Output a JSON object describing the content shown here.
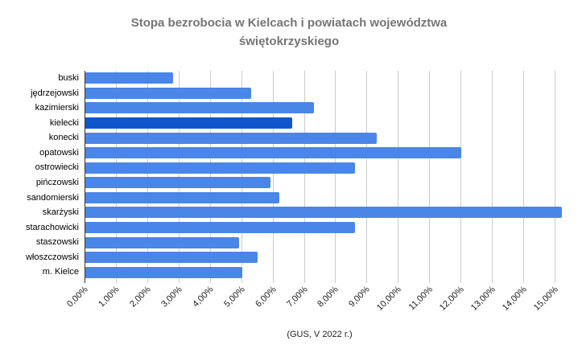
{
  "title_lines": [
    "Stopa bezrobocia w Kielcach i powiatach województwa",
    "świętokrzyskiego"
  ],
  "footer": "(GUS, V 2022 r.)",
  "chart_data": {
    "type": "bar",
    "orientation": "horizontal",
    "title": "Stopa bezrobocia w Kielcach i powiatach województwa świętokrzyskiego",
    "source_note": "(GUS, V 2022 r.)",
    "categories": [
      "buski",
      "jędrzejowski",
      "kazimierski",
      "kielecki",
      "konecki",
      "opatowski",
      "ostrowiecki",
      "pińczowski",
      "sandomierski",
      "skarżyski",
      "starachowicki",
      "staszowski",
      "włoszczowski",
      "m. Kielce"
    ],
    "values": [
      2.8,
      5.3,
      7.3,
      6.6,
      9.3,
      12.0,
      8.6,
      5.9,
      6.2,
      15.2,
      8.6,
      4.9,
      5.5,
      5.0
    ],
    "value_unit": "%",
    "xlim": [
      0,
      15
    ],
    "x_ticks": [
      "0,00%",
      "1,00%",
      "2,00%",
      "3,00%",
      "4,00%",
      "5,00%",
      "6,00%",
      "7,00%",
      "8,00%",
      "9,00%",
      "10,00%",
      "11,00%",
      "12,00%",
      "13,00%",
      "14,00%",
      "15,00%"
    ],
    "grid": true,
    "legend": "none",
    "colors": {
      "bar": "#4a86e8",
      "highlight_bar": "#1155cc",
      "highlight_category": "kielecki",
      "gridline": "#cccccc",
      "axis": "#333333",
      "title_text": "#757575",
      "label_text": "#222222"
    }
  }
}
